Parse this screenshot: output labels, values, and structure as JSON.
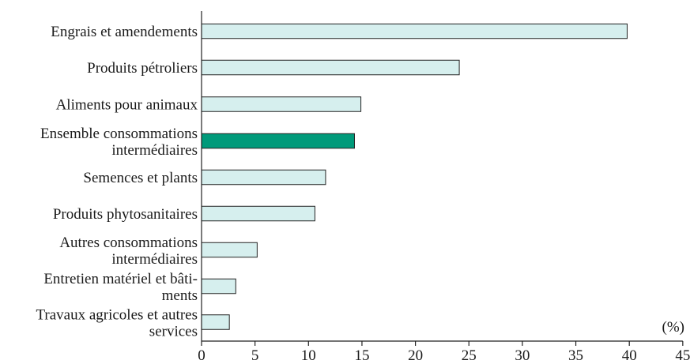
{
  "chart_data": {
    "type": "bar",
    "orientation": "horizontal",
    "categories": [
      [
        "Engrais et amendements"
      ],
      [
        "Produits pétroliers"
      ],
      [
        "Aliments pour animaux"
      ],
      [
        "Ensemble consommations",
        "intermédiaires"
      ],
      [
        "Semences et plants"
      ],
      [
        "Produits phytosanitaires"
      ],
      [
        "Autres consommations",
        "intermédiaires"
      ],
      [
        "Entretien matériel et bâti-",
        "ments"
      ],
      [
        "Travaux agricoles et autres",
        "services"
      ]
    ],
    "values": [
      39.8,
      24.1,
      14.9,
      14.3,
      11.6,
      10.6,
      5.2,
      3.2,
      2.6
    ],
    "highlight_index": 3,
    "colors": {
      "bar": "#d6efee",
      "highlight": "#009a7a"
    },
    "xlim": [
      0,
      45
    ],
    "xticks": [
      "0",
      "5",
      "10",
      "15",
      "20",
      "25",
      "30",
      "35",
      "40",
      "45"
    ],
    "unit_label": "(%)",
    "grid": false,
    "legend": "none"
  }
}
